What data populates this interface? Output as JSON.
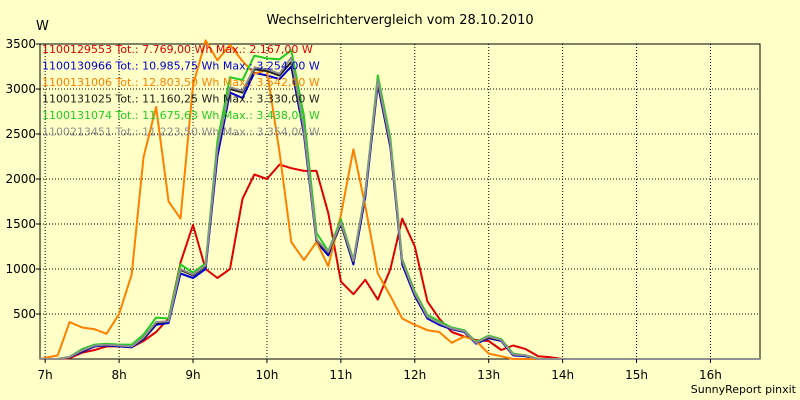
{
  "chart_data": {
    "type": "line",
    "title": "Wechselrichtervergleich vom 28.10.2010",
    "ylabel": "W",
    "xlabel": "",
    "ylim": [
      0,
      3500
    ],
    "xlim": [
      6.93,
      16.67
    ],
    "y_ticks": [
      500,
      1000,
      1500,
      2000,
      2500,
      3000,
      3500
    ],
    "y_tick_labels": [
      "500",
      "1000",
      "1500",
      "2000",
      "2500",
      "3000",
      "3500"
    ],
    "x_ticks": [
      7,
      8,
      9,
      10,
      11,
      12,
      13,
      14,
      15,
      16
    ],
    "x_tick_labels": [
      "7h",
      "8h",
      "9h",
      "10h",
      "11h",
      "12h",
      "13h",
      "14h",
      "15h",
      "16h"
    ],
    "grid": true,
    "x": [
      6.93,
      7.17,
      7.33,
      7.5,
      7.67,
      7.83,
      8.0,
      8.17,
      8.33,
      8.5,
      8.67,
      8.83,
      9.0,
      9.17,
      9.33,
      9.5,
      9.67,
      9.83,
      10.0,
      10.17,
      10.33,
      10.5,
      10.67,
      10.83,
      11.0,
      11.17,
      11.33,
      11.5,
      11.67,
      11.83,
      12.0,
      12.17,
      12.33,
      12.5,
      12.67,
      12.83,
      13.0,
      13.17,
      13.33,
      13.5,
      13.67,
      13.83,
      14.0,
      14.17,
      14.33,
      14.5,
      14.67,
      14.83,
      15.0,
      15.17,
      15.33,
      15.5,
      15.67,
      15.83,
      16.0,
      16.17,
      16.33,
      16.5,
      16.67
    ],
    "series": [
      {
        "name": "1100129553",
        "legend": "1100129553 Tot.: 7.769,00 Wh Max.: 2.167,00 W",
        "color": "#e00000",
        "values": [
          0,
          0,
          10,
          70,
          100,
          140,
          140,
          130,
          200,
          300,
          450,
          1070,
          1490,
          1000,
          900,
          1000,
          1780,
          2050,
          2000,
          2160,
          2120,
          2090,
          2090,
          1620,
          860,
          720,
          880,
          660,
          1000,
          1560,
          1250,
          640,
          450,
          300,
          250,
          210,
          200,
          100,
          150,
          110,
          30,
          20,
          0,
          0,
          0,
          0,
          0,
          0,
          0,
          0,
          0,
          0,
          0,
          0,
          0,
          0,
          0,
          0,
          0
        ]
      },
      {
        "name": "1100130966",
        "legend": "1100130966 Tot.: 10.985,75 Wh Max.: 3.254,00 W",
        "color": "#0000d0",
        "values": [
          0,
          0,
          20,
          80,
          140,
          150,
          140,
          130,
          220,
          380,
          400,
          950,
          900,
          1000,
          2250,
          2960,
          2900,
          3180,
          3150,
          3110,
          3250,
          2500,
          1300,
          1150,
          1500,
          1050,
          1800,
          3050,
          2350,
          1050,
          700,
          450,
          380,
          330,
          300,
          170,
          230,
          200,
          40,
          30,
          0,
          0,
          0,
          0,
          0,
          0,
          0,
          0,
          0,
          0,
          0,
          0,
          0,
          0,
          0,
          0,
          0,
          0,
          0
        ]
      },
      {
        "name": "1100131006",
        "legend": "1100131006 Tot.: 12.803,50 Wh Max.: 3.542,00 W",
        "color": "#ff8000",
        "values": [
          0,
          40,
          410,
          350,
          330,
          280,
          500,
          940,
          2240,
          2800,
          1750,
          1560,
          3040,
          3540,
          3320,
          3490,
          3310,
          3170,
          3210,
          2300,
          1300,
          1100,
          1300,
          1030,
          1600,
          2330,
          1700,
          950,
          700,
          450,
          380,
          320,
          300,
          180,
          250,
          200,
          60,
          30,
          0,
          0,
          0,
          0,
          0,
          0,
          0,
          0,
          0,
          0,
          0,
          0,
          0,
          0,
          0,
          0,
          0,
          0,
          0,
          0,
          0
        ]
      },
      {
        "name": "1100131025",
        "legend": "1100131025 Tot.: 11.160,25 Wh Max.: 3.330,00 W",
        "color": "#202020",
        "values": [
          0,
          0,
          20,
          90,
          150,
          160,
          150,
          140,
          230,
          400,
          420,
          990,
          930,
          1030,
          2330,
          3000,
          2960,
          3220,
          3200,
          3150,
          3300,
          2550,
          1320,
          1180,
          1500,
          1080,
          1850,
          3080,
          2380,
          1080,
          720,
          470,
          400,
          340,
          310,
          180,
          240,
          210,
          50,
          40,
          0,
          0,
          0,
          0,
          0,
          0,
          0,
          0,
          0,
          0,
          0,
          0,
          0,
          0,
          0,
          0,
          0,
          0,
          0
        ]
      },
      {
        "name": "1100131074",
        "legend": "1100131074 Tot.: 11.675,63 Wh Max.: 3.438,00 W",
        "color": "#22cc22",
        "values": [
          0,
          0,
          25,
          110,
          160,
          170,
          160,
          160,
          270,
          460,
          450,
          1050,
          960,
          1060,
          2420,
          3130,
          3100,
          3370,
          3340,
          3330,
          3430,
          2700,
          1400,
          1200,
          1550,
          1100,
          1860,
          3150,
          2450,
          1110,
          750,
          490,
          420,
          350,
          320,
          190,
          260,
          220,
          60,
          40,
          0,
          0,
          0,
          0,
          0,
          0,
          0,
          0,
          0,
          0,
          0,
          0,
          0,
          0,
          0,
          0,
          0,
          0,
          0
        ]
      },
      {
        "name": "1100213451",
        "legend": "1100213451 Tot.: 11.223,50 Wh Max.: 3.354,00 W",
        "color": "#909090",
        "values": [
          0,
          0,
          22,
          95,
          150,
          160,
          150,
          140,
          240,
          410,
          420,
          1000,
          940,
          1040,
          2340,
          3020,
          2980,
          3240,
          3220,
          3170,
          3350,
          2560,
          1330,
          1190,
          1520,
          1090,
          1860,
          3100,
          2400,
          1090,
          730,
          470,
          400,
          340,
          310,
          180,
          250,
          210,
          50,
          40,
          0,
          0,
          0,
          0,
          0,
          0,
          0,
          0,
          0,
          0,
          0,
          0,
          0,
          0,
          0,
          0,
          0,
          0,
          0
        ]
      }
    ],
    "footer": "SunnyReport pinxit"
  }
}
